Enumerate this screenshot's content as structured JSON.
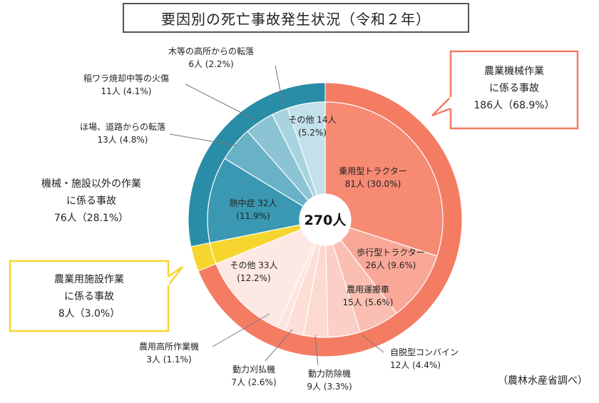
{
  "title": "要因別の死亡事故発生状況（令和２年）",
  "source": "（農林水産省調べ）",
  "colors": {
    "machinery": "#f47c63",
    "other_work": "#2a8da8",
    "facility": "#f6d52e",
    "callout_machinery_border": "#f47c63",
    "callout_other_border": "#2a8da8",
    "callout_facility_border": "#f6d52e"
  },
  "chart_data": {
    "type": "pie",
    "title": "要因別の死亡事故発生状況（令和２年）",
    "total_label": "270人",
    "total": 270,
    "outer_ring": [
      {
        "key": "machinery",
        "lines": [
          "農業機械作業",
          "に係る事故",
          "186人（68.9%）"
        ],
        "value": 186,
        "percent": 68.9
      },
      {
        "key": "facility",
        "lines": [
          "農業用施設作業",
          "に係る事故",
          "8人（3.0%）"
        ],
        "value": 8,
        "percent": 3.0
      },
      {
        "key": "other_work",
        "lines": [
          "機械・施設以外の作業",
          "に係る事故",
          "76人（28.1%）"
        ],
        "value": 76,
        "percent": 28.1
      }
    ],
    "inner_ring": [
      {
        "group": "machinery",
        "lines": [
          "乗用型トラクター",
          "81人 (30.0%)"
        ],
        "value": 81,
        "percent": 30.0,
        "label_position": "inside",
        "fill": "#f68a73"
      },
      {
        "group": "machinery",
        "lines": [
          "歩行型トラクター",
          "26人 (9.6%)"
        ],
        "value": 26,
        "percent": 9.6,
        "label_position": "inside",
        "fill": "#f9a898"
      },
      {
        "group": "machinery",
        "lines": [
          "農用運搬車",
          "15人 (5.6%)"
        ],
        "value": 15,
        "percent": 5.6,
        "label_position": "inside",
        "fill": "#fabfb2"
      },
      {
        "group": "machinery",
        "lines": [
          "自脱型コンバイン",
          "12人 (4.4%)"
        ],
        "value": 12,
        "percent": 4.4,
        "label_position": "outside",
        "fill": "#fbcfc5"
      },
      {
        "group": "machinery",
        "lines": [
          "動力防除機",
          "9人 (3.3%)"
        ],
        "value": 9,
        "percent": 3.3,
        "label_position": "outside",
        "fill": "#fcd9d1"
      },
      {
        "group": "machinery",
        "lines": [
          "動力刈払機",
          "7人 (2.6%)"
        ],
        "value": 7,
        "percent": 2.6,
        "label_position": "outside",
        "fill": "#fddfd8"
      },
      {
        "group": "machinery",
        "lines": [
          "農用高所作業機",
          "3人 (1.1%)"
        ],
        "value": 3,
        "percent": 1.1,
        "label_position": "outside",
        "fill": "#fde4de"
      },
      {
        "group": "machinery",
        "lines": [
          "その他 33人",
          "(12.2%)"
        ],
        "value": 33,
        "percent": 12.2,
        "label_position": "inside",
        "fill": "#fde8e3"
      },
      {
        "group": "facility",
        "lines": [],
        "value": 8,
        "percent": 3.0,
        "label_position": "none",
        "fill": "#f6d52e"
      },
      {
        "group": "other_work",
        "lines": [
          "熱中症 32人",
          "(11.9%)"
        ],
        "value": 32,
        "percent": 11.9,
        "label_position": "inside",
        "fill": "#3a98b2"
      },
      {
        "group": "other_work",
        "lines": [
          "ほ場、道路からの転落",
          "13人 (4.8%)"
        ],
        "value": 13,
        "percent": 4.8,
        "label_position": "outside",
        "fill": "#69b1c6"
      },
      {
        "group": "other_work",
        "lines": [
          "稲ワラ焼却中等の火傷",
          "11人 (4.1%)"
        ],
        "value": 11,
        "percent": 4.1,
        "label_position": "outside",
        "fill": "#8cc4d4"
      },
      {
        "group": "other_work",
        "lines": [
          "木等の高所からの転落",
          "6人 (2.2%)"
        ],
        "value": 6,
        "percent": 2.2,
        "label_position": "outside",
        "fill": "#a9d3df"
      },
      {
        "group": "other_work",
        "lines": [
          "その他 14人",
          "(5.2%)"
        ],
        "value": 14,
        "percent": 5.2,
        "label_position": "inside",
        "fill": "#c3e1ea"
      }
    ]
  }
}
